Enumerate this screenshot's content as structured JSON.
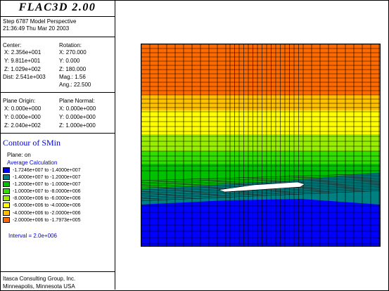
{
  "header": {
    "title": "FLAC3D 2.00",
    "step_line": "Step 6787  Model Perspective",
    "time_line": "21:36:49 Thu Mar 20 2003"
  },
  "view_params": {
    "center_label": "Center:",
    "center_x": "X: 2.356e+001",
    "center_y": "Y: 9.811e+001",
    "center_z": "Z: 1.029e+002",
    "dist": "Dist: 2.541e+003",
    "rotation_label": "Rotation:",
    "rot_x": "X:  270.000",
    "rot_y": "Y:    0.000",
    "rot_z": "Z:  180.000",
    "mag": "Mag.:       1.56",
    "ang": "Ang.:    22.500"
  },
  "plane": {
    "origin_label": "Plane Origin:",
    "origin_x": "X: 0.000e+000",
    "origin_y": "Y: 0.000e+000",
    "origin_z": "Z: 2.040e+002",
    "normal_label": "Plane Normal:",
    "normal_x": "X: 0.000e+000",
    "normal_y": "Y: 0.000e+000",
    "normal_z": "Z: 1.000e+000"
  },
  "contour": {
    "title": "Contour of SMin",
    "plane_on": "Plane: on",
    "avg_calc": "Average Calculation",
    "interval": "Interval =  2.0e+006",
    "legend": [
      {
        "label": "-1.7246e+007 to -1.4000e+007",
        "color": "#0000ff"
      },
      {
        "label": "-1.4000e+007 to -1.2000e+007",
        "color": "#008080"
      },
      {
        "label": "-1.2000e+007 to -1.0000e+007",
        "color": "#00c000"
      },
      {
        "label": "-1.0000e+007 to -8.0000e+006",
        "color": "#33dd00"
      },
      {
        "label": "-8.0000e+006 to -6.0000e+006",
        "color": "#99ee00"
      },
      {
        "label": "-6.0000e+006 to -4.0000e+006",
        "color": "#ffff00"
      },
      {
        "label": "-4.0000e+006 to -2.0000e+006",
        "color": "#ffc000"
      },
      {
        "label": "-2.0000e+006 to -1.7973e+005",
        "color": "#ff6a00"
      }
    ]
  },
  "footer": {
    "company": "Itasca Consulting Group, Inc.",
    "location": "Minneapolis, Minnesota USA"
  }
}
